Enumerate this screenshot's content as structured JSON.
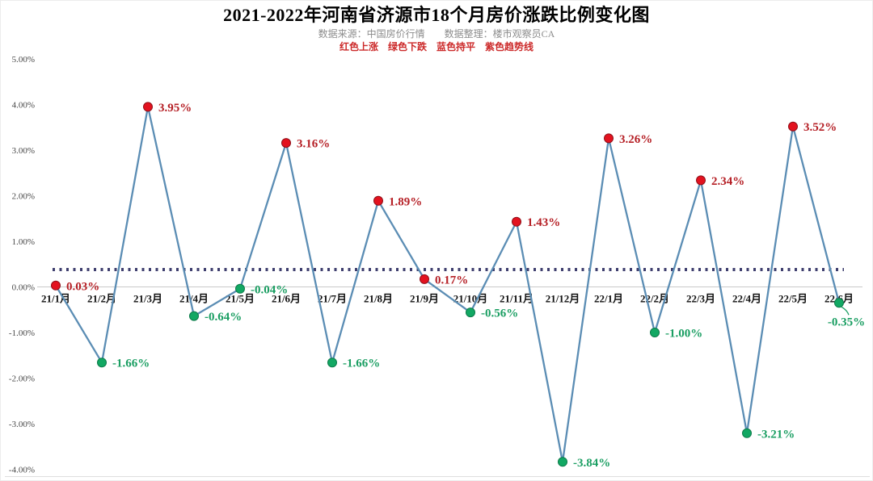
{
  "header": {
    "title": "2021-2022年河南省济源市18个月房价涨跌比例变化图",
    "source_line": "数据来源：中国房价行情　　数据整理：楼市观察员CA",
    "legend_line": "红色上涨　绿色下跌　蓝色持平　紫色趋势线"
  },
  "chart_data": {
    "type": "line",
    "title": "2021-2022年河南省济源市18个月房价涨跌比例变化图",
    "categories": [
      "21/1月",
      "21/2月",
      "21/3月",
      "21/4月",
      "21/5月",
      "21/6月",
      "21/7月",
      "21/8月",
      "21/9月",
      "21/10月",
      "21/11月",
      "21/12月",
      "22/1月",
      "22/2月",
      "22/3月",
      "22/4月",
      "22/5月",
      "22/6月"
    ],
    "values": [
      0.03,
      -1.66,
      3.95,
      -0.64,
      -0.04,
      3.16,
      -1.66,
      1.89,
      0.17,
      -0.56,
      1.43,
      -3.84,
      3.26,
      -1.0,
      2.34,
      -3.21,
      3.52,
      -0.35
    ],
    "point_labels": [
      "0.03%",
      "-1.66%",
      "3.95%",
      "-0.64%",
      "-0.04%",
      "3.16%",
      "-1.66%",
      "1.89%",
      "0.17%",
      "-0.56%",
      "1.43%",
      "-3.84%",
      "3.26%",
      "-1.00%",
      "2.34%",
      "-3.21%",
      "3.52%",
      "-0.35%"
    ],
    "ytick_values": [
      5,
      4,
      3,
      2,
      1,
      0,
      -1,
      -2,
      -3,
      -4
    ],
    "ytick_labels": [
      "5.00%",
      "4.00%",
      "3.00%",
      "2.00%",
      "1.00%",
      "0.00%",
      "-1.00%",
      "-2.00%",
      "-3.00%",
      "-4.00%"
    ],
    "ylim": [
      -4,
      5
    ],
    "trendline_value": 0.38,
    "grid": "zero-line-only",
    "legend_position": "top-center",
    "colors": {
      "up_dot": "#e3121f",
      "up_dot_edge": "#8f0f18",
      "up_label": "#b51f25",
      "down_dot": "#12a863",
      "down_dot_edge": "#0c7a49",
      "down_label": "#1a9e62",
      "line": "#5b8db4",
      "trend": "#3e3e6e",
      "axis": "#c9c9c9",
      "ytick_text": "#4a4a4a",
      "xtick_text": "#111111"
    }
  }
}
